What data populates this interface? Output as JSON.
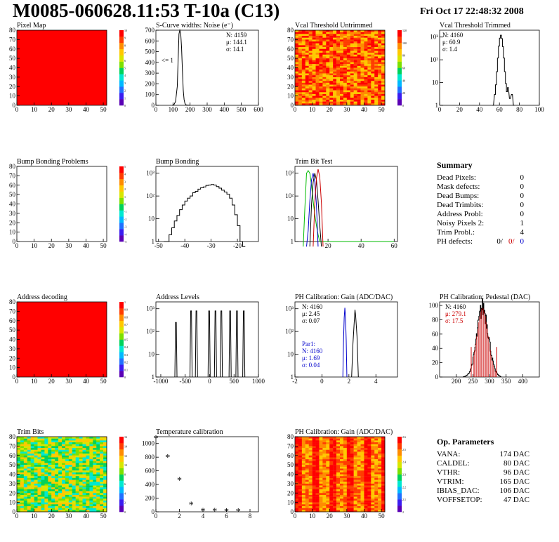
{
  "header": {
    "title": "M0085-060628.11:53 T-10a (C13)",
    "date": "Fri Oct 17 22:48:32 2008"
  },
  "palette": [
    "#5a00b4",
    "#3a1cf0",
    "#2070ff",
    "#00b8ff",
    "#00e8d0",
    "#00d25a",
    "#7ce000",
    "#d8e600",
    "#ffc800",
    "#ff8c00",
    "#ff3c00",
    "#ff0000"
  ],
  "chart_data": [
    {
      "id": "pixel-map",
      "type": "heatmap",
      "title": "Pixel Map",
      "fill": "uniform-red",
      "x_ticks": [
        "0",
        "10",
        "20",
        "30",
        "40",
        "50"
      ],
      "y_ticks": [
        "0",
        "10",
        "20",
        "30",
        "40",
        "50",
        "60",
        "70",
        "80"
      ],
      "z_ticks": [
        "0",
        "1",
        "2",
        "3",
        "4",
        "5",
        "6",
        "7",
        "8",
        "9",
        "10"
      ]
    },
    {
      "id": "scurve-widths",
      "type": "line",
      "title": "S-Curve widths: Noise (e⁻)",
      "xlim": [
        0,
        600
      ],
      "x_ticks": [
        "0",
        "100",
        "200",
        "300",
        "400",
        "500",
        "600"
      ],
      "y_ticks": [
        "0",
        "100",
        "200",
        "300",
        "400",
        "500",
        "600",
        "700"
      ],
      "stats": [
        "N: 4159",
        "μ: 144.1",
        "σ: 14.1"
      ],
      "annotation": "<= 1",
      "x": [
        95,
        105,
        115,
        125,
        130,
        135,
        140,
        145,
        150,
        155,
        160,
        165,
        170,
        175,
        185,
        200
      ],
      "y": [
        0,
        5,
        40,
        200,
        480,
        760,
        800,
        770,
        620,
        380,
        160,
        60,
        20,
        6,
        2,
        0
      ]
    },
    {
      "id": "vcal-untrimmed",
      "type": "heatmap",
      "title": "Vcal Threshold Untrimmed",
      "fill": "noise-warm",
      "x_ticks": [
        "0",
        "10",
        "20",
        "30",
        "40",
        "50"
      ],
      "y_ticks": [
        "0",
        "10",
        "20",
        "30",
        "40",
        "50",
        "60",
        "70",
        "80"
      ],
      "z_ticks": [
        "0",
        "20",
        "40",
        "60",
        "80",
        "100",
        "120"
      ]
    },
    {
      "id": "vcal-trimmed",
      "type": "line",
      "title": "Vcal Threshold Trimmed",
      "log": true,
      "x_ticks": [
        "0",
        "20",
        "40",
        "60",
        "80",
        "100"
      ],
      "y_ticks": [
        "1",
        "10",
        "10²",
        "10³"
      ],
      "stats": [
        "N: 4160",
        "μ: 60.9",
        "σ: 1.4"
      ],
      "x": [
        53,
        55,
        56,
        57,
        58,
        59,
        60,
        61,
        62,
        63,
        64,
        65,
        66,
        67,
        68,
        70,
        72,
        74
      ],
      "y": [
        1,
        3,
        8,
        30,
        120,
        400,
        900,
        1200,
        850,
        380,
        120,
        30,
        9,
        4,
        6,
        2,
        3,
        1
      ]
    },
    {
      "id": "bump-bonding-problems",
      "type": "heatmap",
      "title": "Bump Bonding Problems",
      "fill": "empty",
      "x_ticks": [
        "0",
        "10",
        "20",
        "30",
        "40",
        "50"
      ],
      "y_ticks": [
        "0",
        "10",
        "20",
        "30",
        "40",
        "50",
        "60",
        "70",
        "80"
      ],
      "z_ticks": [
        "-5",
        "-4",
        "-3",
        "-2",
        "-1",
        "0",
        "1",
        "2",
        "3",
        "4",
        "5"
      ]
    },
    {
      "id": "bump-bonding",
      "type": "line",
      "title": "Bump Bonding",
      "log": true,
      "x_ticks": [
        "-50",
        "-40",
        "-30",
        "-20"
      ],
      "y_ticks": [
        "1",
        "10",
        "10²",
        "10³"
      ],
      "x": [
        -48,
        -47,
        -46,
        -45,
        -44,
        -43,
        -42,
        -41,
        -40,
        -39,
        -38,
        -37,
        -36,
        -35,
        -34,
        -33,
        -32,
        -31,
        -30,
        -29,
        -28,
        -27,
        -26,
        -25,
        -24,
        -23,
        -22,
        -21,
        -20,
        -19,
        -18
      ],
      "y": [
        1,
        1,
        2,
        4,
        8,
        14,
        25,
        40,
        60,
        80,
        100,
        140,
        160,
        200,
        230,
        250,
        290,
        300,
        320,
        300,
        260,
        220,
        180,
        150,
        120,
        80,
        40,
        15,
        5,
        1,
        0
      ]
    },
    {
      "id": "trim-bit-test",
      "type": "line",
      "title": "Trim Bit Test",
      "log": true,
      "x_ticks": [
        "20",
        "40",
        "60"
      ],
      "y_ticks": [
        "1",
        "10",
        "10²",
        "10³"
      ],
      "series": [
        {
          "color": "#00bb00",
          "x": [
            5,
            6,
            7,
            8,
            9,
            10,
            11,
            12,
            13,
            14,
            15,
            20,
            40,
            60
          ],
          "y": [
            0,
            30,
            1000,
            1300,
            1000,
            300,
            60,
            15,
            5,
            2,
            1,
            1,
            1,
            1
          ]
        },
        {
          "color": "#0000cc",
          "x": [
            7,
            8,
            9,
            10,
            11,
            12,
            13,
            14
          ],
          "y": [
            0,
            3,
            60,
            500,
            1000,
            400,
            40,
            0
          ]
        },
        {
          "color": "#000000",
          "x": [
            9,
            10,
            11,
            12,
            13,
            14,
            15,
            16
          ],
          "y": [
            0,
            40,
            400,
            1000,
            500,
            60,
            5,
            0
          ]
        },
        {
          "color": "#cc0000",
          "x": [
            11,
            12,
            13,
            14,
            15,
            16,
            17
          ],
          "y": [
            0,
            50,
            600,
            1500,
            700,
            50,
            0
          ]
        }
      ]
    },
    {
      "id": "address-decoding",
      "type": "heatmap",
      "title": "Address decoding",
      "fill": "uniform-red",
      "x_ticks": [
        "0",
        "10",
        "20",
        "30",
        "40",
        "50"
      ],
      "y_ticks": [
        "0",
        "10",
        "20",
        "30",
        "40",
        "50",
        "60",
        "70",
        "80"
      ],
      "z_ticks": [
        "0",
        "0.1",
        "0.2",
        "0.3",
        "0.4",
        "0.5",
        "0.6",
        "0.7",
        "0.8",
        "0.9",
        "1"
      ]
    },
    {
      "id": "address-levels",
      "type": "line",
      "title": "Address Levels",
      "log": true,
      "x_ticks": [
        "-1000",
        "-500",
        "0",
        "500",
        "1000"
      ],
      "y_ticks": [
        "1",
        "10",
        "10²",
        "10³"
      ],
      "peaks": [
        -690,
        -380,
        -270,
        -10,
        120,
        240,
        420,
        560,
        700
      ],
      "peak_heights": [
        250,
        800,
        800,
        800,
        800,
        800,
        800,
        800,
        800
      ]
    },
    {
      "id": "ph-gain",
      "type": "line",
      "title": "PH Calibration: Gain (ADC/DAC)",
      "log": true,
      "x_ticks": [
        "-2",
        "0",
        "2",
        "4"
      ],
      "y_ticks": [
        "1",
        "10",
        "10²",
        "10³"
      ],
      "stats": [
        "N: 4160",
        "μ: 2.45",
        "σ: 0.07"
      ],
      "stats2": [
        "Par1:",
        "N: 4160",
        "μ: 1.69",
        "σ: 0.04"
      ],
      "series": [
        {
          "color": "#000000",
          "x": [
            2.2,
            2.3,
            2.4,
            2.45,
            2.5,
            2.6,
            2.7
          ],
          "y": [
            1,
            30,
            300,
            900,
            500,
            60,
            1
          ]
        },
        {
          "color": "#0000cc",
          "x": [
            1.55,
            1.6,
            1.65,
            1.7,
            1.75,
            1.8,
            1.85
          ],
          "y": [
            1,
            40,
            400,
            1100,
            400,
            40,
            1
          ]
        }
      ]
    },
    {
      "id": "ph-pedestal",
      "type": "bar",
      "title": "PH Calibration: Pedestal (DAC)",
      "xlim": [
        150,
        450
      ],
      "x_ticks": [
        "200",
        "250",
        "300",
        "350",
        "400"
      ],
      "y_ticks": [
        "0",
        "20",
        "40",
        "60",
        "80",
        "100"
      ],
      "stats": [
        "N: 4160",
        "μ: 279.1",
        "σ: 17.5"
      ],
      "cut_lines": [
        245,
        322
      ],
      "mean": 279.1,
      "sigma": 17.5,
      "peak": 97
    },
    {
      "id": "trim-bits",
      "type": "heatmap",
      "title": "Trim Bits",
      "fill": "noise-green",
      "x_ticks": [
        "0",
        "10",
        "20",
        "30",
        "40",
        "50"
      ],
      "y_ticks": [
        "0",
        "10",
        "20",
        "30",
        "40",
        "50",
        "60",
        "70",
        "80"
      ],
      "z_ticks": [
        "0",
        "2",
        "4",
        "6",
        "8",
        "10",
        "12",
        "14",
        "16"
      ]
    },
    {
      "id": "temperature-calibration",
      "type": "scatter",
      "title": "Temperature calibration",
      "x_ticks": [
        "0",
        "2",
        "4",
        "6",
        "8"
      ],
      "y_ticks": [
        "0",
        "200",
        "400",
        "600",
        "800",
        "1000"
      ],
      "x": [
        0,
        1,
        2,
        3,
        4,
        5,
        6,
        7
      ],
      "y": [
        1080,
        800,
        470,
        110,
        15,
        15,
        10,
        10
      ]
    },
    {
      "id": "ph-gain-map",
      "type": "heatmap",
      "title": "PH Calibration: Gain (ADC/DAC)",
      "fill": "noise-stripe",
      "x_ticks": [
        "0",
        "10",
        "20",
        "30",
        "40",
        "50"
      ],
      "y_ticks": [
        "0",
        "10",
        "20",
        "30",
        "40",
        "50",
        "60",
        "70",
        "80"
      ],
      "z_ticks": [
        "2",
        "2.1",
        "2.2",
        "2.3",
        "2.4",
        "2.5",
        "2.6"
      ]
    }
  ],
  "summary": {
    "title": "Summary",
    "rows": [
      {
        "label": "Dead Pixels:",
        "value": "0"
      },
      {
        "label": "Mask defects:",
        "value": "0"
      },
      {
        "label": "Dead Bumps:",
        "value": "0"
      },
      {
        "label": "Dead Trimbits:",
        "value": "0"
      },
      {
        "label": "Address Probl:",
        "value": "0"
      },
      {
        "label": "Noisy Pixels 2:",
        "value": "1"
      },
      {
        "label": "Trim Probl.:",
        "value": "4"
      }
    ],
    "ph_defects": {
      "label": "PH defects:",
      "v1": "0/",
      "v2": "0/",
      "v3": "0"
    }
  },
  "op_params": {
    "title": "Op. Parameters",
    "rows": [
      {
        "label": "VANA:",
        "value": "174 DAC"
      },
      {
        "label": "CALDEL:",
        "value": "80 DAC"
      },
      {
        "label": "VTHR:",
        "value": "96 DAC"
      },
      {
        "label": "VTRIM:",
        "value": "165 DAC"
      },
      {
        "label": "IBIAS_DAC:",
        "value": "106 DAC"
      },
      {
        "label": "VOFFSETOP:",
        "value": "47 DAC"
      }
    ]
  }
}
